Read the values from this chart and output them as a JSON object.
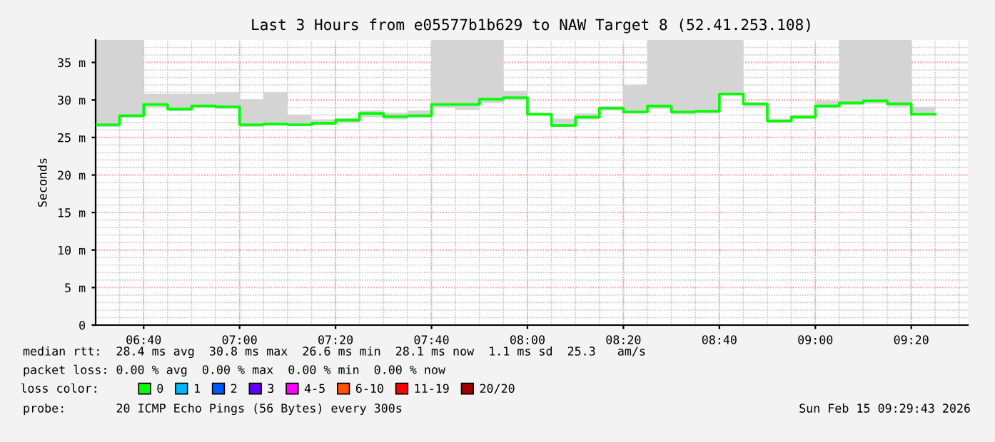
{
  "chart_data": {
    "type": "step",
    "title": "Last 3 Hours from e05577b1b629 to NAW Target 8 (52.41.253.108)",
    "ylabel": "Seconds",
    "x": [
      6.5,
      6.5833,
      6.6667,
      6.75,
      6.8333,
      6.9167,
      7.0,
      7.0833,
      7.1667,
      7.25,
      7.3333,
      7.4167,
      7.5,
      7.5833,
      7.6667,
      7.75,
      7.8333,
      7.9167,
      8.0,
      8.0833,
      8.1667,
      8.25,
      8.3333,
      8.4167,
      8.5,
      8.5833,
      8.6667,
      8.75,
      8.8333,
      8.9167,
      9.0,
      9.0833,
      9.1667,
      9.25,
      9.3333,
      9.4167
    ],
    "series": [
      {
        "name": "0",
        "color": "#00ff00",
        "values": [
          26.7,
          27.9,
          29.4,
          28.8,
          29.2,
          29.1,
          26.7,
          26.8,
          26.7,
          26.9,
          27.3,
          28.2,
          27.8,
          27.9,
          29.4,
          29.4,
          30.1,
          30.3,
          28.1,
          26.6,
          27.7,
          28.9,
          28.4,
          29.2,
          28.4,
          28.5,
          30.8,
          29.5,
          27.2,
          27.7,
          29.2,
          29.6,
          29.9,
          29.5,
          28.1,
          28.1
        ],
        "lower": [
          26.4,
          27.6,
          29.0,
          28.5,
          29.0,
          28.8,
          26.4,
          26.6,
          26.5,
          26.7,
          26.9,
          27.7,
          27.4,
          27.6,
          29.0,
          28.7,
          29.6,
          30.0,
          27.9,
          26.4,
          27.4,
          28.6,
          28.2,
          28.8,
          28.1,
          28.2,
          30.6,
          29.1,
          26.9,
          27.5,
          28.9,
          29.3,
          29.5,
          29.1,
          27.9,
          27.9
        ],
        "upper": [
          38,
          38,
          30.8,
          30.8,
          30.8,
          31.0,
          30.1,
          31.0,
          28.0,
          27.4,
          27.6,
          28.6,
          28.3,
          28.6,
          38,
          38,
          38,
          31.2,
          28.3,
          27.5,
          28.2,
          29.2,
          32.0,
          38,
          38,
          38,
          38,
          29.6,
          27.5,
          28.0,
          29.9,
          38,
          38,
          38,
          29.1,
          29.1
        ]
      },
      {
        "name": "1",
        "color": "#00b8ff",
        "values": [
          null,
          null,
          null,
          null,
          null,
          null,
          null,
          null,
          null,
          null,
          null,
          null,
          null,
          null,
          null,
          null,
          null,
          null,
          null,
          null,
          null,
          null,
          null,
          null,
          null,
          null,
          null,
          null,
          null,
          null,
          null,
          null,
          null,
          null,
          null,
          null
        ]
      },
      {
        "name": "2",
        "color": "#0059ff",
        "values": [
          null,
          null,
          null,
          null,
          null,
          null,
          null,
          null,
          null,
          null,
          null,
          null,
          null,
          null,
          null,
          null,
          null,
          null,
          null,
          null,
          null,
          null,
          null,
          null,
          null,
          null,
          null,
          null,
          null,
          null,
          null,
          null,
          null,
          null,
          null,
          null
        ]
      },
      {
        "name": "3",
        "color": "#5e00ff",
        "values": [
          null,
          null,
          null,
          null,
          null,
          null,
          null,
          null,
          null,
          null,
          null,
          null,
          null,
          null,
          null,
          null,
          null,
          null,
          null,
          null,
          null,
          null,
          null,
          null,
          null,
          null,
          null,
          null,
          null,
          null,
          null,
          null,
          null,
          null,
          null,
          null
        ]
      },
      {
        "name": "4-5",
        "color": "#ff00ff",
        "values": [
          null,
          null,
          null,
          null,
          null,
          null,
          null,
          null,
          null,
          null,
          null,
          null,
          null,
          null,
          null,
          null,
          null,
          null,
          null,
          null,
          null,
          null,
          null,
          null,
          null,
          null,
          null,
          null,
          null,
          null,
          null,
          null,
          null,
          null,
          null,
          null
        ]
      },
      {
        "name": "6-10",
        "color": "#ff5500",
        "values": [
          null,
          null,
          null,
          null,
          null,
          null,
          null,
          null,
          null,
          null,
          null,
          null,
          null,
          null,
          null,
          null,
          null,
          null,
          null,
          null,
          null,
          null,
          null,
          null,
          null,
          null,
          null,
          null,
          null,
          null,
          null,
          null,
          null,
          null,
          null,
          null
        ]
      },
      {
        "name": "11-19",
        "color": "#ff0000",
        "values": [
          null,
          null,
          null,
          null,
          null,
          null,
          null,
          null,
          null,
          null,
          null,
          null,
          null,
          null,
          null,
          null,
          null,
          null,
          null,
          null,
          null,
          null,
          null,
          null,
          null,
          null,
          null,
          null,
          null,
          null,
          null,
          null,
          null,
          null,
          null,
          null
        ]
      },
      {
        "name": "20/20",
        "color": "#a10000",
        "values": [
          null,
          null,
          null,
          null,
          null,
          null,
          null,
          null,
          null,
          null,
          null,
          null,
          null,
          null,
          null,
          null,
          null,
          null,
          null,
          null,
          null,
          null,
          null,
          null,
          null,
          null,
          null,
          null,
          null,
          null,
          null,
          null,
          null,
          null,
          null,
          null
        ]
      }
    ],
    "legend": "bottom",
    "legend_title": "loss color:",
    "xlim": [
      6.5,
      9.53
    ],
    "ylim": [
      0,
      38
    ],
    "xticks": [
      {
        "value": 6.6667,
        "label": "06:40"
      },
      {
        "value": 7.0,
        "label": "07:00"
      },
      {
        "value": 7.3333,
        "label": "07:20"
      },
      {
        "value": 7.6667,
        "label": "07:40"
      },
      {
        "value": 8.0,
        "label": "08:00"
      },
      {
        "value": 8.3333,
        "label": "08:20"
      },
      {
        "value": 8.6667,
        "label": "08:40"
      },
      {
        "value": 9.0,
        "label": "09:00"
      },
      {
        "value": 9.3333,
        "label": "09:20"
      }
    ],
    "yticks": [
      0,
      {
        "value": 5,
        "label": "5 m"
      },
      {
        "value": 10,
        "label": "10 m"
      },
      {
        "value": 15,
        "label": "15 m"
      },
      {
        "value": 20,
        "label": "20 m"
      },
      {
        "value": 25,
        "label": "25 m"
      },
      {
        "value": 30,
        "label": "30 m"
      },
      {
        "value": 35,
        "label": "35 m"
      }
    ],
    "grid": true,
    "annotations": [
      "median rtt:  28.4 ms avg  30.8 ms max  26.6 ms min  28.1 ms now  1.1 ms sd  25.3   am/s",
      "packet loss: 0.00 % avg  0.00 % max  0.00 % min  0.00 % now",
      "probe:       20 ICMP Echo Pings (56 Bytes) every 300s",
      "Sun Feb 15 09:29:43 2026"
    ]
  }
}
